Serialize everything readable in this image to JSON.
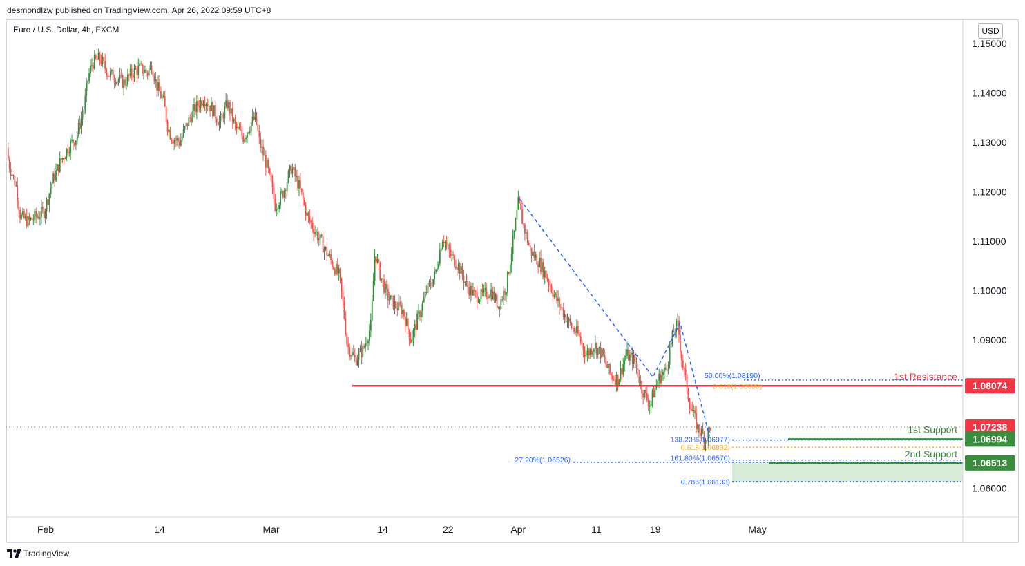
{
  "header": {
    "publish_text": "desmondlzw published on TradingView.com, Apr 26, 2022 09:59 UTC+8",
    "symbol_label": "Euro / U.S. Dollar, 4h, FXCM",
    "currency": "USD"
  },
  "footer": {
    "brand": "TradingView"
  },
  "chart_data": {
    "type": "candlestick",
    "instrument": "Euro / U.S. Dollar",
    "timeframe": "4h",
    "source": "FXCM",
    "y_ticks": [
      "1.15000",
      "1.14000",
      "1.13000",
      "1.12000",
      "1.11000",
      "1.10000",
      "1.09000",
      "1.06000"
    ],
    "ylim": [
      1.0545,
      1.1515
    ],
    "x_ticks": [
      {
        "label": "Feb",
        "x": 0.0
      },
      {
        "label": "14",
        "x": 14.3
      },
      {
        "label": "Mar",
        "x": 28.3
      },
      {
        "label": "14",
        "x": 42.3
      },
      {
        "label": "22",
        "x": 50.5
      },
      {
        "label": "Apr",
        "x": 59.3
      },
      {
        "label": "11",
        "x": 69.1
      },
      {
        "label": "19",
        "x": 76.5
      },
      {
        "label": "May",
        "x": 89.3
      }
    ],
    "price_path": [
      [
        -4.7,
        1.129
      ],
      [
        -4.5,
        1.126
      ],
      [
        -3.5,
        1.121
      ],
      [
        -3,
        1.115
      ],
      [
        -2,
        1.114
      ],
      [
        -1,
        1.115
      ],
      [
        0,
        1.116
      ],
      [
        1,
        1.122
      ],
      [
        2,
        1.126
      ],
      [
        3,
        1.129
      ],
      [
        4,
        1.131
      ],
      [
        5,
        1.137
      ],
      [
        5.5,
        1.143
      ],
      [
        6,
        1.146
      ],
      [
        7,
        1.147
      ],
      [
        8,
        1.144
      ],
      [
        9,
        1.143
      ],
      [
        10,
        1.142
      ],
      [
        11,
        1.144
      ],
      [
        12,
        1.145
      ],
      [
        13,
        1.144
      ],
      [
        13.5,
        1.146
      ],
      [
        14,
        1.142
      ],
      [
        15,
        1.138
      ],
      [
        15.5,
        1.133
      ],
      [
        16,
        1.131
      ],
      [
        17,
        1.13
      ],
      [
        18,
        1.134
      ],
      [
        19,
        1.137
      ],
      [
        20,
        1.139
      ],
      [
        21,
        1.137
      ],
      [
        22,
        1.134
      ],
      [
        23,
        1.138
      ],
      [
        24,
        1.133
      ],
      [
        25,
        1.131
      ],
      [
        26,
        1.134
      ],
      [
        26.5,
        1.135
      ],
      [
        27,
        1.13
      ],
      [
        28,
        1.125
      ],
      [
        29,
        1.117
      ],
      [
        30,
        1.12
      ],
      [
        31,
        1.125
      ],
      [
        32,
        1.121
      ],
      [
        33,
        1.115
      ],
      [
        34,
        1.112
      ],
      [
        35,
        1.109
      ],
      [
        36,
        1.106
      ],
      [
        37,
        1.103
      ],
      [
        37.5,
        1.097
      ],
      [
        38,
        1.089
      ],
      [
        39,
        1.086
      ],
      [
        40,
        1.088
      ],
      [
        41,
        1.093
      ],
      [
        41.5,
        1.108
      ],
      [
        42,
        1.104
      ],
      [
        43,
        1.099
      ],
      [
        44,
        1.097
      ],
      [
        45,
        1.096
      ],
      [
        46,
        1.09
      ],
      [
        47,
        1.095
      ],
      [
        48,
        1.1
      ],
      [
        49,
        1.103
      ],
      [
        50,
        1.111
      ],
      [
        51,
        1.107
      ],
      [
        52,
        1.105
      ],
      [
        53,
        1.101
      ],
      [
        54,
        1.099
      ],
      [
        55,
        1.099
      ],
      [
        56,
        1.1
      ],
      [
        57,
        1.097
      ],
      [
        58,
        1.101
      ],
      [
        59,
        1.112
      ],
      [
        59.5,
        1.118
      ],
      [
        60,
        1.114
      ],
      [
        61,
        1.108
      ],
      [
        62,
        1.106
      ],
      [
        63,
        1.103
      ],
      [
        64,
        1.099
      ],
      [
        65,
        1.096
      ],
      [
        66,
        1.093
      ],
      [
        67,
        1.091
      ],
      [
        68,
        1.087
      ],
      [
        69,
        1.089
      ],
      [
        70,
        1.087
      ],
      [
        71,
        1.083
      ],
      [
        72,
        1.082
      ],
      [
        73,
        1.087
      ],
      [
        74,
        1.086
      ],
      [
        75,
        1.08
      ],
      [
        76,
        1.077
      ],
      [
        77,
        1.082
      ],
      [
        78,
        1.084
      ],
      [
        79,
        1.092
      ],
      [
        79.5,
        1.093
      ],
      [
        80,
        1.086
      ],
      [
        81,
        1.077
      ],
      [
        82,
        1.072
      ],
      [
        83,
        1.07
      ],
      [
        83.6,
        1.0724
      ]
    ],
    "ohlc_note": "approximate closes; individual candles drawn with estimated wicks",
    "levels": [
      {
        "name": "1st Resistance",
        "value": 1.08074,
        "label": "1.08074",
        "color": "#f23645"
      },
      {
        "name": "1st Support",
        "value": 1.06994,
        "label": "1.06994",
        "color": "#388e3c"
      },
      {
        "name": "2nd Support",
        "value": 1.06513,
        "label": "1.06513",
        "color": "#388e3c"
      }
    ],
    "current_price": {
      "value": 1.07238,
      "label": "1.07238",
      "color": "#f23645"
    },
    "fib_annotations": [
      {
        "text": "50.00%(1.08190)",
        "value": 1.0819,
        "color": "#2962ff"
      },
      {
        "text": "0.618(1.08000)",
        "value": 1.08,
        "color": "#f9a825"
      },
      {
        "text": "138.20%(1.06977)",
        "value": 1.06977,
        "color": "#2962ff"
      },
      {
        "text": "0.618(1.06832)",
        "value": 1.06832,
        "color": "#f9a825"
      },
      {
        "text": "−27.20%(1.06526)",
        "value": 1.06526,
        "color": "#2962ff"
      },
      {
        "text": "161.80%(1.06570)",
        "value": 1.0657,
        "color": "#2962ff"
      },
      {
        "text": "0.786(1.06133)",
        "value": 1.06133,
        "color": "#2962ff"
      }
    ],
    "legend": "none",
    "grid": false
  }
}
